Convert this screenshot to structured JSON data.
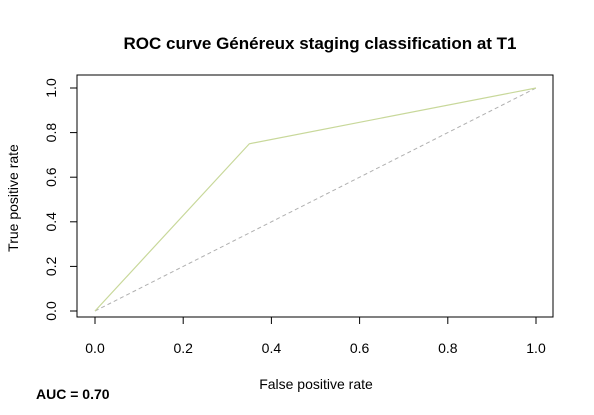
{
  "chart_data": {
    "type": "line",
    "title": "ROC curve Généreux staging classification at T1",
    "xlabel": "False positive rate",
    "ylabel": "True positive rate",
    "xlim": [
      0,
      1
    ],
    "ylim": [
      0,
      1
    ],
    "xticks": [
      "0.0",
      "0.2",
      "0.4",
      "0.6",
      "0.8",
      "1.0"
    ],
    "yticks": [
      "0.0",
      "0.2",
      "0.4",
      "0.6",
      "0.8",
      "1.0"
    ],
    "grid": false,
    "legend": "none",
    "series": [
      {
        "color": "#c8d89a",
        "x": [
          0,
          0.35,
          1
        ],
        "y": [
          0,
          0.75,
          1
        ]
      }
    ],
    "reference_line": {
      "x": [
        0,
        1
      ],
      "y": [
        0,
        1
      ],
      "style": "dashed",
      "color": "#b0b0b0"
    },
    "annotation": "AUC = 0.70"
  }
}
